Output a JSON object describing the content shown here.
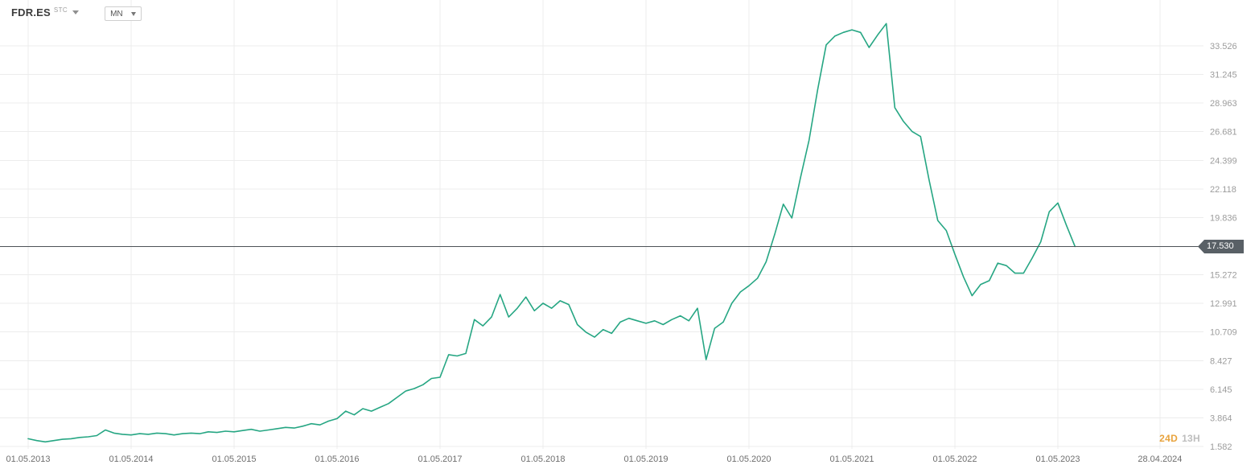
{
  "header": {
    "symbol": "FDR.ES",
    "exchange": "STC",
    "timeframe": "MN"
  },
  "countdown": {
    "days": "24D",
    "hours": "13H"
  },
  "colors": {
    "series": "#26a683",
    "grid": "#ececec",
    "price_line": "#4d5257",
    "badge_bg": "#596066",
    "badge_text": "#ffffff",
    "y_label": "#9c9c9c",
    "x_label": "#6e6e6e",
    "countdown_days": "#e8a33d",
    "countdown_hours": "#bdbdbd"
  },
  "chart_data": {
    "type": "line",
    "title": "FDR.ES",
    "timeframe": "MN",
    "x_unit": "month",
    "start": "2013-05",
    "end": "2023-07",
    "grid": true,
    "legend": "none",
    "current_price": 17.53,
    "current_price_label": "17.530",
    "y_axis": {
      "top_value": 33.526,
      "bottom_value": 1.582,
      "ticks": [
        "33.526",
        "31.245",
        "28.963",
        "26.681",
        "24.399",
        "22.118",
        "19.836",
        "15.272",
        "12.991",
        "10.709",
        "8.427",
        "6.145",
        "3.864",
        "1.582"
      ]
    },
    "x_axis": {
      "ticks": [
        {
          "label": "01.05.2013",
          "month_index": 0
        },
        {
          "label": "01.05.2014",
          "month_index": 12
        },
        {
          "label": "01.05.2015",
          "month_index": 24
        },
        {
          "label": "01.05.2016",
          "month_index": 36
        },
        {
          "label": "01.05.2017",
          "month_index": 48
        },
        {
          "label": "01.05.2018",
          "month_index": 60
        },
        {
          "label": "01.05.2019",
          "month_index": 72
        },
        {
          "label": "01.05.2020",
          "month_index": 84
        },
        {
          "label": "01.05.2021",
          "month_index": 96
        },
        {
          "label": "01.05.2022",
          "month_index": 108
        },
        {
          "label": "01.05.2023",
          "month_index": 120
        },
        {
          "label": "28.04.2024",
          "month_index": 131.9
        }
      ]
    },
    "series": [
      {
        "name": "FDR.ES monthly close",
        "values": [
          2.2,
          2.05,
          1.95,
          2.05,
          2.15,
          2.2,
          2.3,
          2.35,
          2.45,
          2.9,
          2.65,
          2.55,
          2.5,
          2.6,
          2.55,
          2.65,
          2.6,
          2.5,
          2.6,
          2.65,
          2.6,
          2.75,
          2.7,
          2.8,
          2.75,
          2.85,
          2.95,
          2.8,
          2.9,
          3.0,
          3.1,
          3.05,
          3.2,
          3.4,
          3.3,
          3.6,
          3.8,
          4.4,
          4.1,
          4.6,
          4.4,
          4.7,
          5.0,
          5.5,
          6.0,
          6.2,
          6.5,
          7.0,
          7.1,
          8.9,
          8.8,
          9.0,
          11.7,
          11.2,
          11.9,
          13.7,
          11.9,
          12.6,
          13.5,
          12.4,
          13.0,
          12.6,
          13.2,
          12.9,
          11.3,
          10.7,
          10.3,
          10.9,
          10.6,
          11.5,
          11.8,
          11.6,
          11.4,
          11.6,
          11.3,
          11.7,
          12.0,
          11.6,
          12.6,
          8.5,
          11.0,
          11.5,
          13.0,
          13.9,
          14.4,
          15.0,
          16.3,
          18.5,
          20.9,
          19.8,
          23.0,
          26.0,
          30.0,
          33.6,
          34.3,
          34.6,
          34.8,
          34.6,
          33.4,
          34.4,
          35.3,
          28.6,
          27.5,
          26.7,
          26.3,
          22.8,
          19.6,
          18.8,
          16.9,
          15.1,
          13.6,
          14.5,
          14.8,
          16.2,
          16.0,
          15.4,
          15.4,
          16.6,
          17.9,
          20.3,
          21.0,
          19.2,
          17.53
        ]
      }
    ]
  }
}
